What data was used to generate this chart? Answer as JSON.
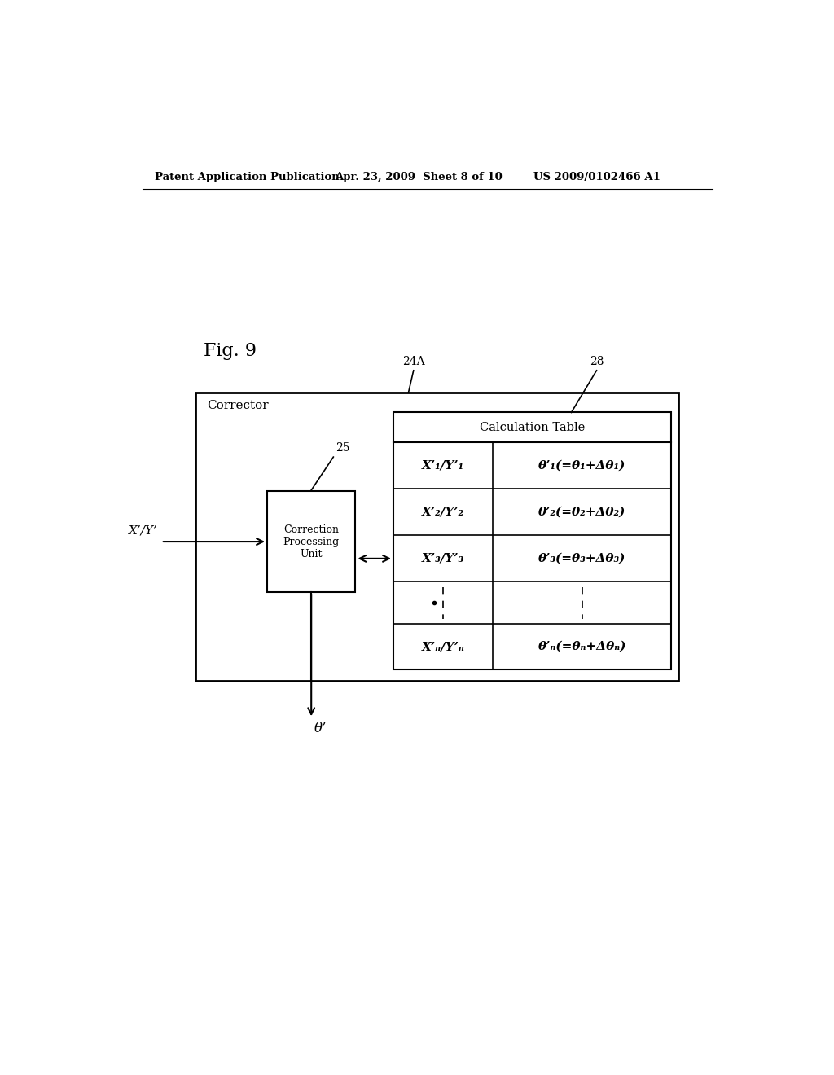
{
  "header_left": "Patent Application Publication",
  "header_mid": "Apr. 23, 2009  Sheet 8 of 10",
  "header_right": "US 2009/0102466 A1",
  "fig_label": "Fig. 9",
  "label_24A": "24A",
  "label_28": "28",
  "label_25": "25",
  "label_corrector": "Corrector",
  "label_calc_table": "Calculation Table",
  "label_cpu": "Correction\nProcessing\nUnit",
  "label_input": "X’/Y’",
  "label_output": "θ’",
  "row1_left": "X’₁/Y’₁",
  "row1_right": "θ’₁(=θ₁+Δθ₁)",
  "row2_left": "X’₂/Y’₂",
  "row2_right": "θ’₂(=θ₂+Δθ₂)",
  "row3_left": "X’₃/Y’₃",
  "row3_right": "θ’₃(=θ₃+Δθ₃)",
  "rown_left": "X’ₙ/Y’ₙ",
  "rown_right": "θ’ₙ(=θₙ+Δθₙ)",
  "bg_color": "#ffffff",
  "text_color": "#000000"
}
